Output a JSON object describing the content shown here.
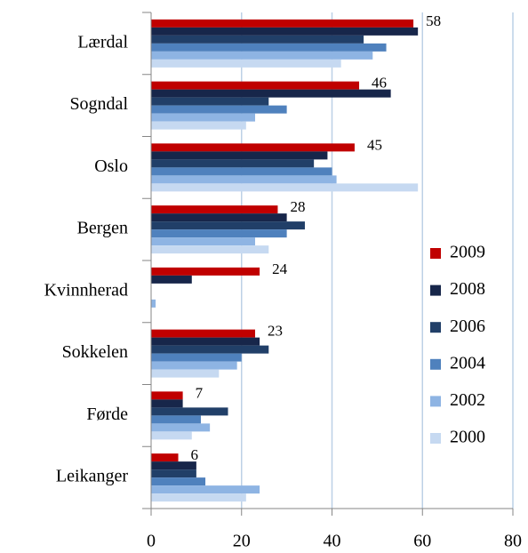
{
  "chart_data": {
    "type": "barh",
    "categories": [
      "Lærdal",
      "Sogndal",
      "Oslo",
      "Bergen",
      "Kvinnherad",
      "Sokkelen",
      "Førde",
      "Leikanger"
    ],
    "series": [
      {
        "name": "2009",
        "color": "#c00000",
        "values": [
          58,
          46,
          45,
          28,
          24,
          23,
          7,
          6
        ]
      },
      {
        "name": "2008",
        "color": "#17264a",
        "values": [
          59,
          53,
          39,
          30,
          9,
          24,
          7,
          10
        ]
      },
      {
        "name": "2006",
        "color": "#213f68",
        "values": [
          47,
          26,
          36,
          34,
          0,
          26,
          17,
          10
        ]
      },
      {
        "name": "2004",
        "color": "#4f81bd",
        "values": [
          52,
          30,
          40,
          30,
          0,
          20,
          11,
          12
        ]
      },
      {
        "name": "2002",
        "color": "#8eb4e3",
        "values": [
          49,
          23,
          41,
          23,
          1,
          19,
          13,
          24
        ]
      },
      {
        "name": "2000",
        "color": "#c6d9f1",
        "values": [
          42,
          21,
          59,
          26,
          0,
          15,
          9,
          21
        ]
      }
    ],
    "xlim": [
      0,
      80
    ],
    "xticks": [
      0,
      20,
      40,
      60,
      80
    ],
    "grid": true,
    "data_labels_series": 0,
    "legend": "right"
  }
}
